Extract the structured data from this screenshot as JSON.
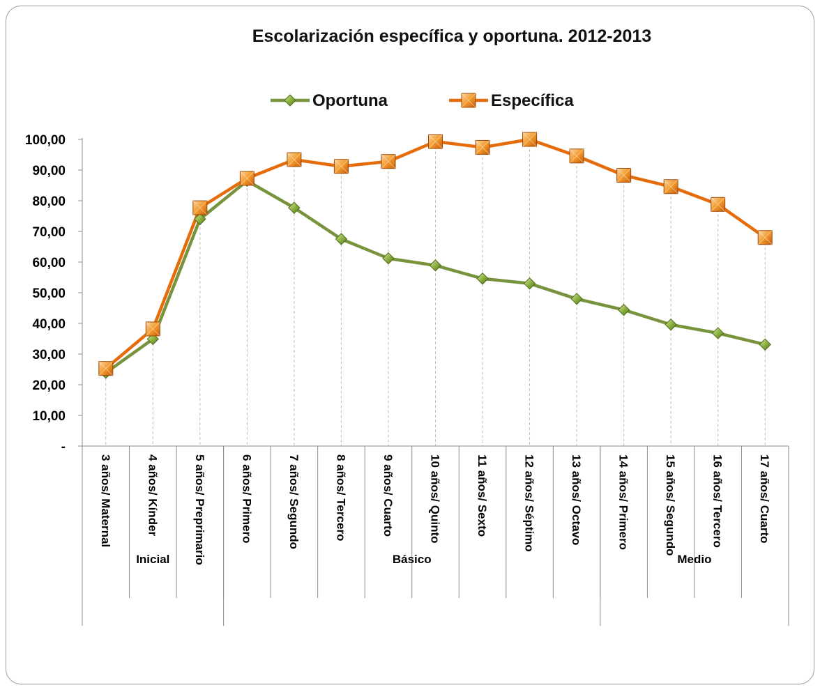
{
  "chart_data": {
    "type": "line",
    "title": "Escolarización específica y oportuna. 2012-2013",
    "categories": [
      "3 años/ Maternal",
      "4 años/ Kínder",
      "5 años/ Preprimario",
      "6 años/ Primero",
      "7 años/ Segundo",
      "8 años/ Tercero",
      "9 años/ Cuarto",
      "10 años/ Quinto",
      "11 años/ Sexto",
      "12 años/ Séptimo",
      "13 años/ Octavo",
      "14 años/ Primero",
      "15 años/ Segundo",
      "16 años/ Tercero",
      "17 años/ Cuarto"
    ],
    "groups": [
      {
        "label": "Inicial",
        "count": 3
      },
      {
        "label": "Básico",
        "count": 8
      },
      {
        "label": "Medio",
        "count": 4
      }
    ],
    "series": [
      {
        "name": "Oportuna",
        "color": "#77933c",
        "marker": "diamond",
        "values": [
          23.9,
          34.9,
          74.0,
          86.5,
          77.7,
          67.5,
          61.2,
          58.9,
          54.6,
          53.0,
          48.0,
          44.4,
          39.6,
          36.8,
          33.1
        ]
      },
      {
        "name": "Específica",
        "color": "#e46c0a",
        "marker": "square",
        "values": [
          25.3,
          38.2,
          77.7,
          87.3,
          93.4,
          91.2,
          92.8,
          99.3,
          97.4,
          100.0,
          94.6,
          88.3,
          84.6,
          78.8,
          68.0
        ]
      }
    ],
    "yticks": [
      "-",
      "10,00",
      "20,00",
      "30,00",
      "40,00",
      "50,00",
      "60,00",
      "70,00",
      "80,00",
      "90,00",
      "100,00"
    ],
    "ylim": [
      0,
      100
    ],
    "grid": "dashed vertical drop lines",
    "legend": "top-center"
  }
}
